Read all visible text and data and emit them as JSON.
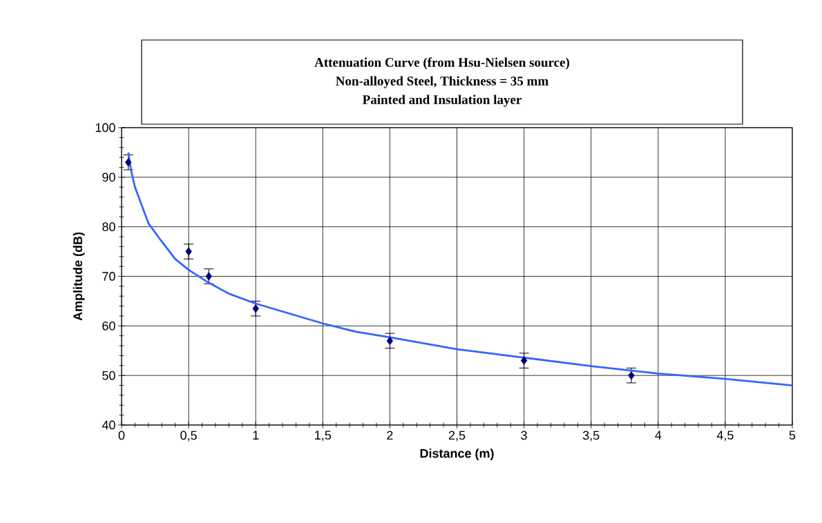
{
  "chart_data": {
    "type": "scatter",
    "title": "Attenuation Curve (from Hsu-Nielsen source)",
    "subtitle": "Non-alloyed Steel, Thickness = 35 mm",
    "annotations": [
      "Painted and Insulation layer"
    ],
    "xlabel": "Distance (m)",
    "ylabel": "Amplitude (dB)",
    "xlim": [
      0,
      5
    ],
    "ylim": [
      40,
      100
    ],
    "xticks": [
      0,
      {
        "value": 0.5,
        "label": "0,5"
      },
      1,
      {
        "value": 1.5,
        "label": "1,5"
      },
      2,
      {
        "value": 2.5,
        "label": "2,5"
      },
      3,
      {
        "value": 3.5,
        "label": "3,5"
      },
      4,
      {
        "value": 4.5,
        "label": "4,5"
      },
      5
    ],
    "yticks": [
      40,
      50,
      60,
      70,
      80,
      90,
      100
    ],
    "grid": true,
    "series": [
      {
        "color": "#000080",
        "marker": "diamond",
        "x": [
          0.05,
          0.5,
          0.65,
          1,
          2,
          3,
          3.8
        ],
        "values": [
          93,
          75,
          70,
          63.5,
          57,
          53,
          50
        ],
        "errors": [
          1.5,
          1.5,
          1.5,
          1.5,
          1.5,
          1.5,
          1.5
        ]
      },
      {
        "type": "line",
        "color": "#3366ff",
        "line_style": "solid",
        "x": [
          0.05,
          0.07,
          0.1,
          0.2,
          0.3,
          0.4,
          0.5,
          0.65,
          0.8,
          1,
          1.5,
          1.75,
          2,
          2.5,
          3,
          3.5,
          4,
          4.5,
          5
        ],
        "values": [
          95,
          91.5,
          88,
          80.7,
          77,
          73.5,
          71.3,
          68.7,
          66.5,
          64.5,
          60.5,
          58.8,
          57.7,
          55.3,
          53.6,
          51.9,
          50.4,
          49.3,
          48
        ]
      }
    ]
  }
}
